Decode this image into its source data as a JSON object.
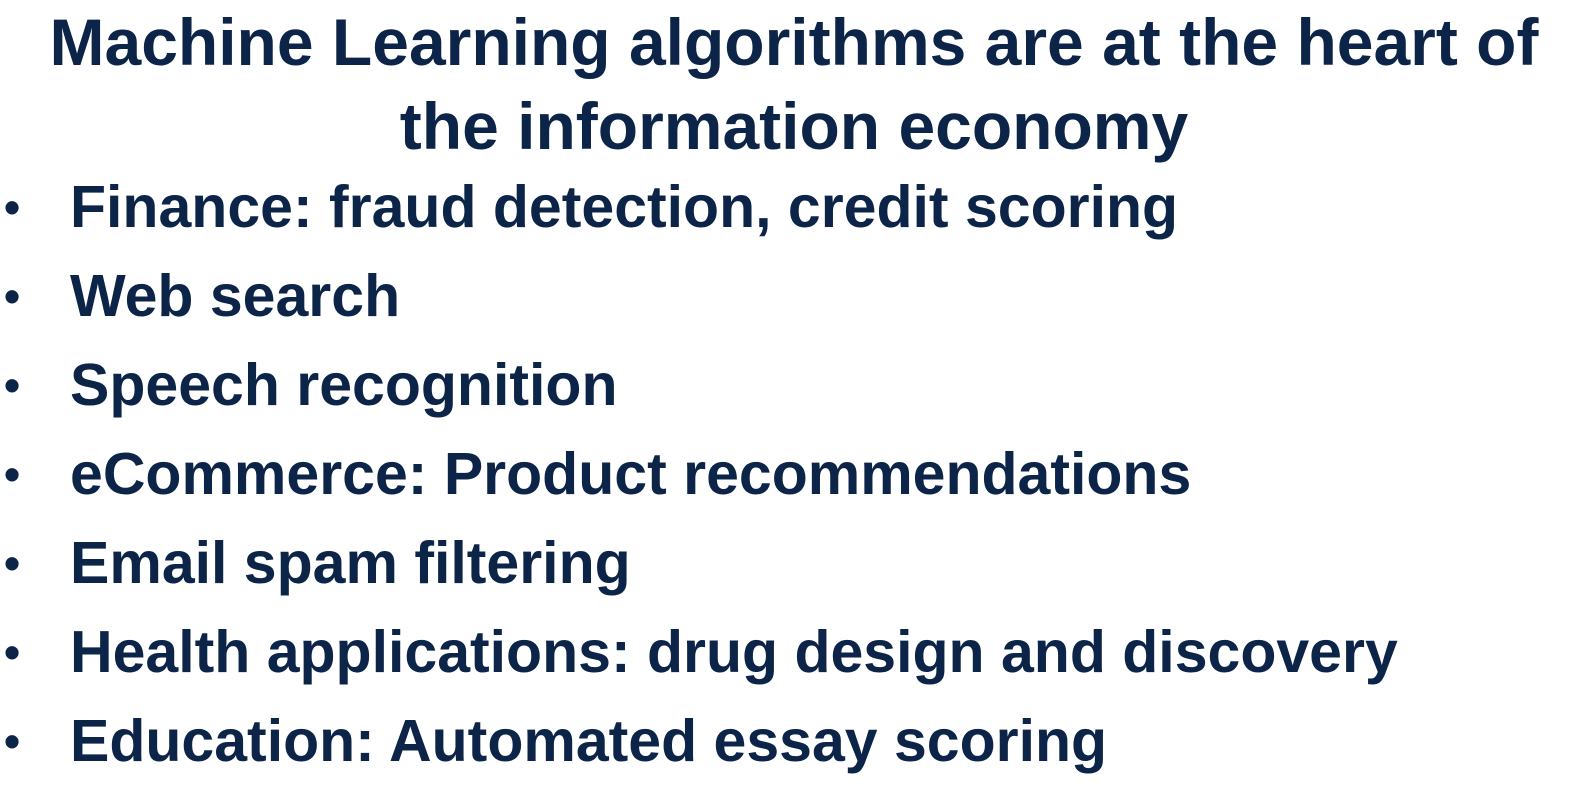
{
  "slide": {
    "title_lines": [
      "Machine Learning algorithms are at the heart of",
      "the information economy"
    ],
    "bullet_symbol": "•",
    "bullets": [
      "Finance: fraud detection, credit scoring",
      "Web search",
      "Speech recognition",
      "eCommerce: Product recommendations",
      "Email spam filtering",
      "Health applications: drug design and discovery",
      "Education: Automated essay scoring"
    ]
  },
  "colors": {
    "text": "#0b2447",
    "background": "#ffffff"
  }
}
